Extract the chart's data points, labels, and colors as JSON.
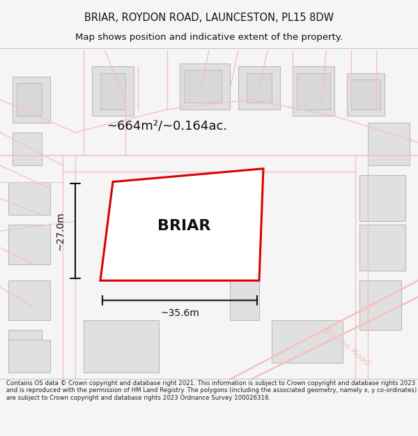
{
  "title_line1": "BRIAR, ROYDON ROAD, LAUNCESTON, PL15 8DW",
  "title_line2": "Map shows position and indicative extent of the property.",
  "property_label": "BRIAR",
  "area_label": "~664m²/~0.164ac.",
  "width_label": "~35.6m",
  "height_label": "~27.0m",
  "footer_text": "Contains OS data © Crown copyright and database right 2021. This information is subject to Crown copyright and database rights 2023 and is reproduced with the permission of HM Land Registry. The polygons (including the associated geometry, namely x, y co-ordinates) are subject to Crown copyright and database rights 2023 Ordnance Survey 100026316.",
  "bg_color": "#f5f5f5",
  "map_bg": "#f0f0f0",
  "road_color": "#f5c0c0",
  "road_fill": "#f5f5f5",
  "building_fill": "#e0e0e0",
  "building_edge": "#cccccc",
  "property_edge": "#dd0000",
  "property_fill": "#ffffff",
  "dim_line_color": "#111111",
  "title_color": "#111111",
  "label_color": "#111111"
}
